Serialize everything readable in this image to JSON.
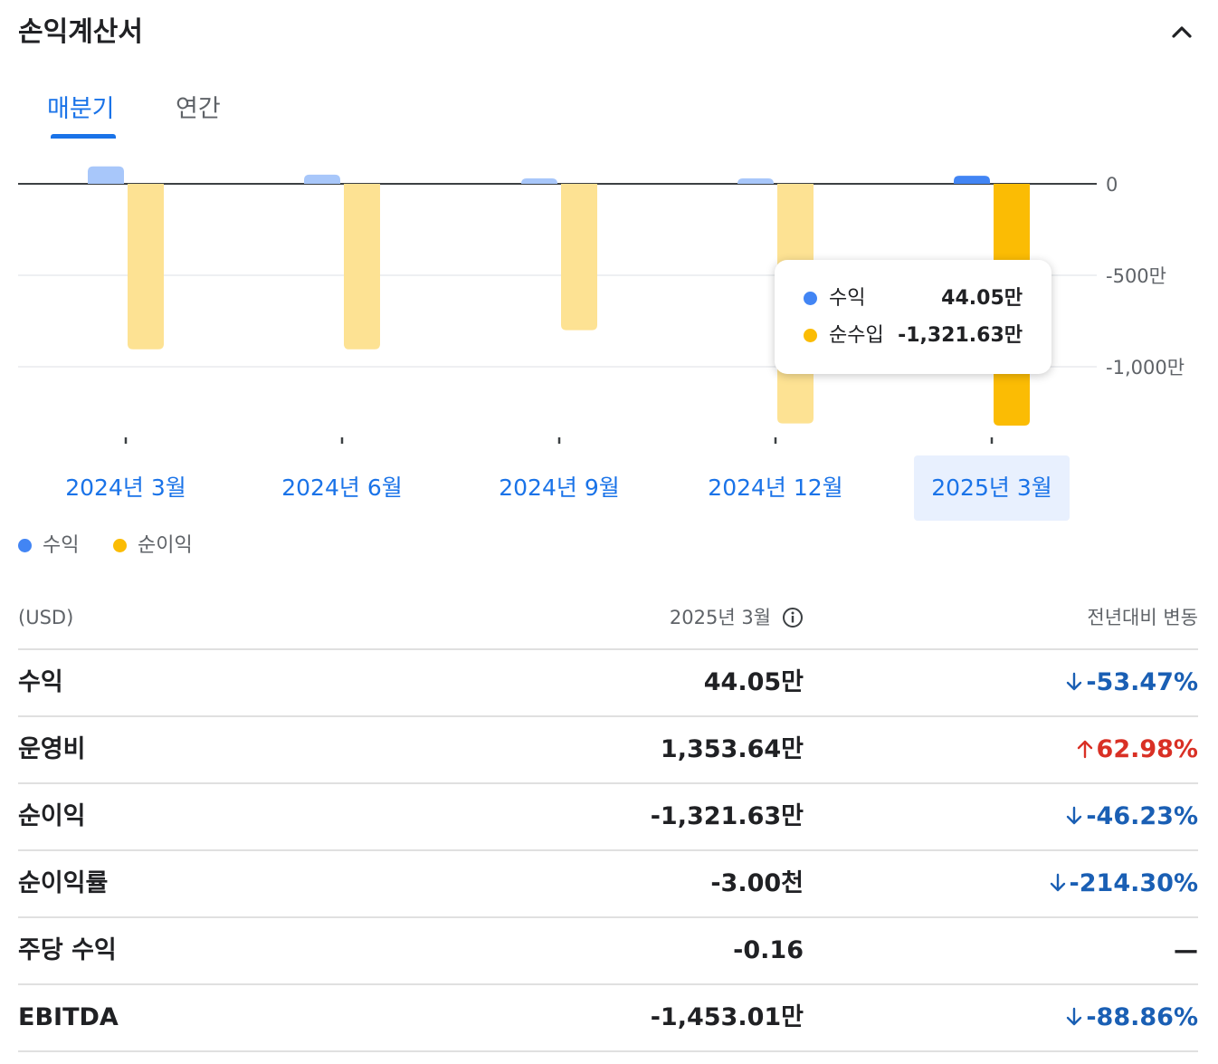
{
  "header": {
    "title": "손익계산서"
  },
  "tabs": [
    {
      "label": "매분기",
      "active": true
    },
    {
      "label": "연간",
      "active": false
    }
  ],
  "chart_data": {
    "type": "bar",
    "categories": [
      "2024년 3월",
      "2024년 6월",
      "2024년 9월",
      "2024년 12월",
      "2025년 3월"
    ],
    "selected_index": 4,
    "series": [
      {
        "name": "수익",
        "color": "#4285f4",
        "values": [
          95,
          50,
          30,
          30,
          44.05
        ]
      },
      {
        "name": "순이익",
        "color": "#fbbc04",
        "values": [
          -905,
          -905,
          -800,
          -1310,
          -1321.63
        ]
      }
    ],
    "yticks": [
      0,
      -500,
      -1000
    ],
    "ytick_labels": [
      "0",
      "-500만",
      "-1,000만"
    ],
    "ylim": [
      -1400,
      100
    ],
    "grid": true
  },
  "tooltip": {
    "rows": [
      {
        "name": "수익",
        "value": "44.05만",
        "color": "#4285f4"
      },
      {
        "name": "순수입",
        "value": "-1,321.63만",
        "color": "#fbbc04"
      }
    ]
  },
  "legend": [
    {
      "name": "수익",
      "color": "#4285f4"
    },
    {
      "name": "순이익",
      "color": "#fbbc04"
    }
  ],
  "table": {
    "header": {
      "currency": "(USD)",
      "period": "2025년 3월",
      "change": "전년대비 변동"
    },
    "rows": [
      {
        "name": "수익",
        "value": "44.05만",
        "change": "-53.47%",
        "dir": "down"
      },
      {
        "name": "운영비",
        "value": "1,353.64만",
        "change": "62.98%",
        "dir": "up"
      },
      {
        "name": "순이익",
        "value": "-1,321.63만",
        "change": "-46.23%",
        "dir": "down"
      },
      {
        "name": "순이익률",
        "value": "-3.00천",
        "change": "-214.30%",
        "dir": "down"
      },
      {
        "name": "주당 수익",
        "value": "-0.16",
        "change": "—",
        "dir": "none"
      },
      {
        "name": "EBITDA",
        "value": "-1,453.01만",
        "change": "-88.86%",
        "dir": "down"
      }
    ]
  },
  "colors": {
    "accent": "#1a73e8",
    "down": "#1a5fb4",
    "up": "#d93025"
  }
}
